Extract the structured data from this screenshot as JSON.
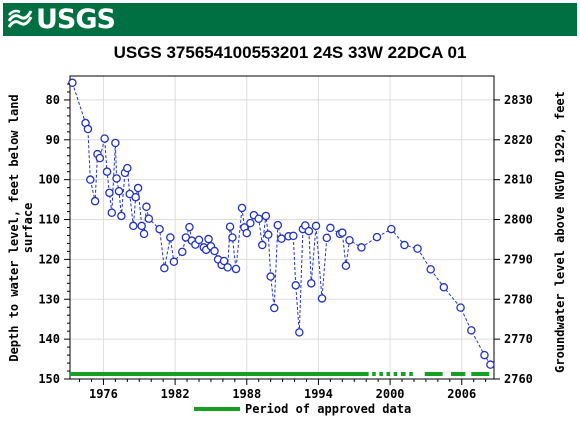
{
  "header": {
    "logo_text": "USGS",
    "logo_icon": "usgs-wave-icon",
    "brand_color": "#006f41"
  },
  "chart_data": {
    "type": "scatter",
    "title": "USGS 375654100553201 24S 33W 22DCA 01",
    "ylabel": "Depth to water level, feet below land surface",
    "y2label": "Groundwater level above NGVD 1929, feet",
    "x_ticks": [
      "1976",
      "1982",
      "1988",
      "1994",
      "2000",
      "2006"
    ],
    "y_ticks": [
      "80",
      "90",
      "100",
      "110",
      "120",
      "130",
      "140",
      "150"
    ],
    "y2_ticks": [
      "2830",
      "2820",
      "2810",
      "2800",
      "2790",
      "2780",
      "2770",
      "2760"
    ],
    "xlim": [
      1973.2,
      2008.7
    ],
    "ylim": [
      150,
      74
    ],
    "y2_offset": 2910,
    "series_color": "#2233bb",
    "approved_color": "#16a022",
    "approved_segments": [
      [
        1973.2,
        1998.2
      ],
      [
        1998.5,
        1998.8
      ],
      [
        1999.1,
        1999.4
      ],
      [
        1999.7,
        2000.0
      ],
      [
        2000.3,
        2000.6
      ],
      [
        2000.9,
        2001.3
      ],
      [
        2001.6,
        2001.9
      ],
      [
        2002.9,
        2004.4
      ],
      [
        2005.1,
        2006.3
      ],
      [
        2006.8,
        2008.3
      ]
    ],
    "legend": {
      "label": "Period of approved data",
      "placement": "bottom"
    },
    "points": [
      [
        1973.4,
        75.7
      ],
      [
        1974.5,
        85.8
      ],
      [
        1974.7,
        87.3
      ],
      [
        1974.9,
        100.0
      ],
      [
        1975.3,
        105.4
      ],
      [
        1975.5,
        93.6
      ],
      [
        1975.7,
        94.6
      ],
      [
        1976.1,
        89.7
      ],
      [
        1976.3,
        98.0
      ],
      [
        1976.5,
        103.3
      ],
      [
        1976.7,
        108.3
      ],
      [
        1977.0,
        90.8
      ],
      [
        1977.1,
        99.7
      ],
      [
        1977.3,
        102.9
      ],
      [
        1977.5,
        109.1
      ],
      [
        1977.8,
        98.3
      ],
      [
        1978.0,
        97.1
      ],
      [
        1978.2,
        103.6
      ],
      [
        1978.5,
        111.6
      ],
      [
        1978.7,
        104.4
      ],
      [
        1978.9,
        102.1
      ],
      [
        1979.2,
        111.6
      ],
      [
        1979.4,
        113.6
      ],
      [
        1979.6,
        106.8
      ],
      [
        1979.8,
        109.8
      ],
      [
        1980.7,
        112.4
      ],
      [
        1981.1,
        122.2
      ],
      [
        1981.6,
        114.5
      ],
      [
        1981.9,
        120.6
      ],
      [
        1982.6,
        118.1
      ],
      [
        1982.9,
        114.5
      ],
      [
        1983.2,
        111.9
      ],
      [
        1983.4,
        115.3
      ],
      [
        1983.7,
        116.3
      ],
      [
        1984.0,
        115.1
      ],
      [
        1984.4,
        117.0
      ],
      [
        1984.6,
        117.6
      ],
      [
        1984.8,
        114.9
      ],
      [
        1985.0,
        116.7
      ],
      [
        1985.3,
        117.9
      ],
      [
        1985.6,
        120.0
      ],
      [
        1985.9,
        121.4
      ],
      [
        1986.1,
        120.4
      ],
      [
        1986.4,
        122.0
      ],
      [
        1986.6,
        111.8
      ],
      [
        1986.8,
        114.5
      ],
      [
        1987.1,
        122.4
      ],
      [
        1987.6,
        107.1
      ],
      [
        1987.8,
        112.0
      ],
      [
        1988.0,
        113.4
      ],
      [
        1988.3,
        110.9
      ],
      [
        1988.6,
        108.9
      ],
      [
        1989.0,
        109.8
      ],
      [
        1989.3,
        116.4
      ],
      [
        1989.6,
        109.1
      ],
      [
        1989.8,
        113.8
      ],
      [
        1990.0,
        124.3
      ],
      [
        1990.3,
        132.2
      ],
      [
        1990.6,
        111.4
      ],
      [
        1990.9,
        114.8
      ],
      [
        1991.5,
        114.2
      ],
      [
        1991.9,
        114.1
      ],
      [
        1992.1,
        126.5
      ],
      [
        1992.4,
        138.3
      ],
      [
        1992.7,
        112.4
      ],
      [
        1992.9,
        111.5
      ],
      [
        1993.2,
        112.9
      ],
      [
        1993.4,
        126.0
      ],
      [
        1993.8,
        111.6
      ],
      [
        1994.3,
        129.8
      ],
      [
        1994.7,
        114.6
      ],
      [
        1995.0,
        112.1
      ],
      [
        1995.8,
        113.6
      ],
      [
        1996.0,
        113.3
      ],
      [
        1996.3,
        121.6
      ],
      [
        1996.6,
        115.2
      ],
      [
        1997.6,
        117.0
      ],
      [
        1998.9,
        114.4
      ],
      [
        2000.1,
        112.4
      ],
      [
        2001.2,
        116.4
      ],
      [
        2002.3,
        117.3
      ],
      [
        2003.4,
        122.5
      ],
      [
        2004.5,
        127.0
      ],
      [
        2005.9,
        132.1
      ],
      [
        2006.8,
        137.8
      ],
      [
        2007.9,
        144.0
      ],
      [
        2008.4,
        146.4
      ]
    ]
  }
}
